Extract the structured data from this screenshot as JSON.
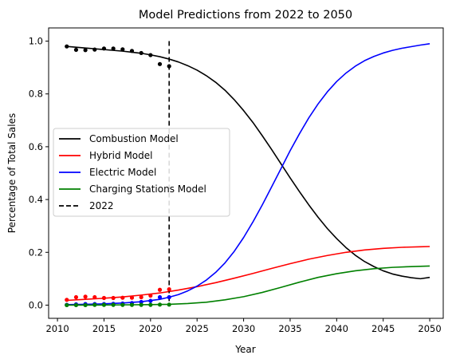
{
  "chart_data": {
    "type": "line",
    "title": "Model Predictions from 2022 to 2050",
    "xlabel": "Year",
    "ylabel": "Percentage of Total Sales",
    "xlim": [
      2009.05,
      2051.45
    ],
    "ylim": [
      -0.05,
      1.05
    ],
    "xticks": [
      2010,
      2015,
      2020,
      2025,
      2030,
      2035,
      2040,
      2045,
      2050
    ],
    "yticks": [
      0.0,
      0.2,
      0.4,
      0.6,
      0.8,
      1.0
    ],
    "grid": false,
    "legend": "center-left",
    "series": [
      {
        "name": "Combustion Model",
        "color": "#000000",
        "x": [
          2011,
          2012,
          2013,
          2014,
          2015,
          2016,
          2017,
          2018,
          2019,
          2020,
          2021,
          2022,
          2023,
          2024,
          2025,
          2026,
          2027,
          2028,
          2029,
          2030,
          2031,
          2032,
          2033,
          2034,
          2035,
          2036,
          2037,
          2038,
          2039,
          2040,
          2041,
          2042,
          2043,
          2044,
          2045,
          2046,
          2047,
          2048,
          2049,
          2050
        ],
        "values": [
          0.98,
          0.977,
          0.974,
          0.971,
          0.968,
          0.965,
          0.962,
          0.958,
          0.954,
          0.948,
          0.941,
          0.932,
          0.921,
          0.907,
          0.89,
          0.869,
          0.844,
          0.814,
          0.778,
          0.737,
          0.692,
          0.642,
          0.59,
          0.536,
          0.482,
          0.43,
          0.38,
          0.333,
          0.29,
          0.252,
          0.218,
          0.189,
          0.165,
          0.146,
          0.13,
          0.118,
          0.11,
          0.104,
          0.1,
          0.105
        ]
      },
      {
        "name": "Hybrid Model",
        "color": "#ff0000",
        "x": [
          2011,
          2013,
          2015,
          2017,
          2019,
          2021,
          2023,
          2025,
          2027,
          2029,
          2031,
          2033,
          2035,
          2037,
          2039,
          2041,
          2043,
          2045,
          2047,
          2049,
          2050
        ],
        "values": [
          0.018,
          0.022,
          0.026,
          0.031,
          0.038,
          0.046,
          0.057,
          0.07,
          0.085,
          0.102,
          0.12,
          0.139,
          0.157,
          0.174,
          0.188,
          0.2,
          0.209,
          0.215,
          0.219,
          0.221,
          0.222
        ]
      },
      {
        "name": "Electric Model",
        "color": "#0000ff",
        "x": [
          2011,
          2013,
          2015,
          2017,
          2019,
          2021,
          2022,
          2023,
          2024,
          2025,
          2026,
          2027,
          2028,
          2029,
          2030,
          2031,
          2032,
          2033,
          2034,
          2035,
          2036,
          2037,
          2038,
          2039,
          2040,
          2041,
          2042,
          2043,
          2044,
          2045,
          2046,
          2047,
          2048,
          2049,
          2050
        ],
        "values": [
          0.002,
          0.003,
          0.005,
          0.008,
          0.013,
          0.022,
          0.03,
          0.04,
          0.054,
          0.072,
          0.095,
          0.124,
          0.16,
          0.204,
          0.256,
          0.315,
          0.379,
          0.447,
          0.516,
          0.585,
          0.649,
          0.709,
          0.762,
          0.808,
          0.847,
          0.879,
          0.905,
          0.926,
          0.942,
          0.955,
          0.965,
          0.973,
          0.979,
          0.985,
          0.99
        ]
      },
      {
        "name": "Charging Stations Model",
        "color": "#008000",
        "x": [
          2011,
          2014,
          2017,
          2020,
          2022,
          2024,
          2026,
          2028,
          2030,
          2032,
          2034,
          2036,
          2038,
          2040,
          2042,
          2044,
          2046,
          2048,
          2050
        ],
        "values": [
          0.0,
          0.0,
          0.001,
          0.002,
          0.003,
          0.006,
          0.011,
          0.02,
          0.032,
          0.048,
          0.067,
          0.087,
          0.105,
          0.119,
          0.13,
          0.138,
          0.143,
          0.146,
          0.148
        ]
      },
      {
        "name": "2022",
        "color": "#000000",
        "style": "dashed",
        "vline_x": 2022,
        "y_range": [
          0.0,
          1.0
        ]
      }
    ],
    "observed_points": [
      {
        "color": "#000000",
        "x": [
          2011,
          2012,
          2013,
          2014,
          2015,
          2016,
          2017,
          2018,
          2019,
          2020,
          2021,
          2022
        ],
        "values": [
          0.98,
          0.967,
          0.966,
          0.968,
          0.972,
          0.972,
          0.969,
          0.963,
          0.955,
          0.947,
          0.913,
          0.905
        ]
      },
      {
        "color": "#ff0000",
        "x": [
          2011,
          2012,
          2013,
          2014,
          2015,
          2016,
          2017,
          2018,
          2019,
          2020,
          2021,
          2022
        ],
        "values": [
          0.02,
          0.03,
          0.032,
          0.03,
          0.027,
          0.027,
          0.028,
          0.028,
          0.03,
          0.036,
          0.058,
          0.06
        ]
      },
      {
        "color": "#0000ff",
        "x": [
          2011,
          2012,
          2013,
          2014,
          2015,
          2016,
          2017,
          2018,
          2019,
          2020,
          2021,
          2022
        ],
        "values": [
          0.001,
          0.003,
          0.004,
          0.004,
          0.004,
          0.005,
          0.006,
          0.008,
          0.012,
          0.016,
          0.03,
          0.03
        ]
      },
      {
        "color": "#008000",
        "x": [
          2011,
          2012,
          2013,
          2014,
          2015,
          2016,
          2017,
          2018,
          2019,
          2020,
          2021,
          2022
        ],
        "values": [
          0.0,
          0.0,
          0.0,
          0.001,
          0.001,
          0.001,
          0.001,
          0.001,
          0.001,
          0.001,
          0.002,
          0.002
        ]
      }
    ]
  }
}
